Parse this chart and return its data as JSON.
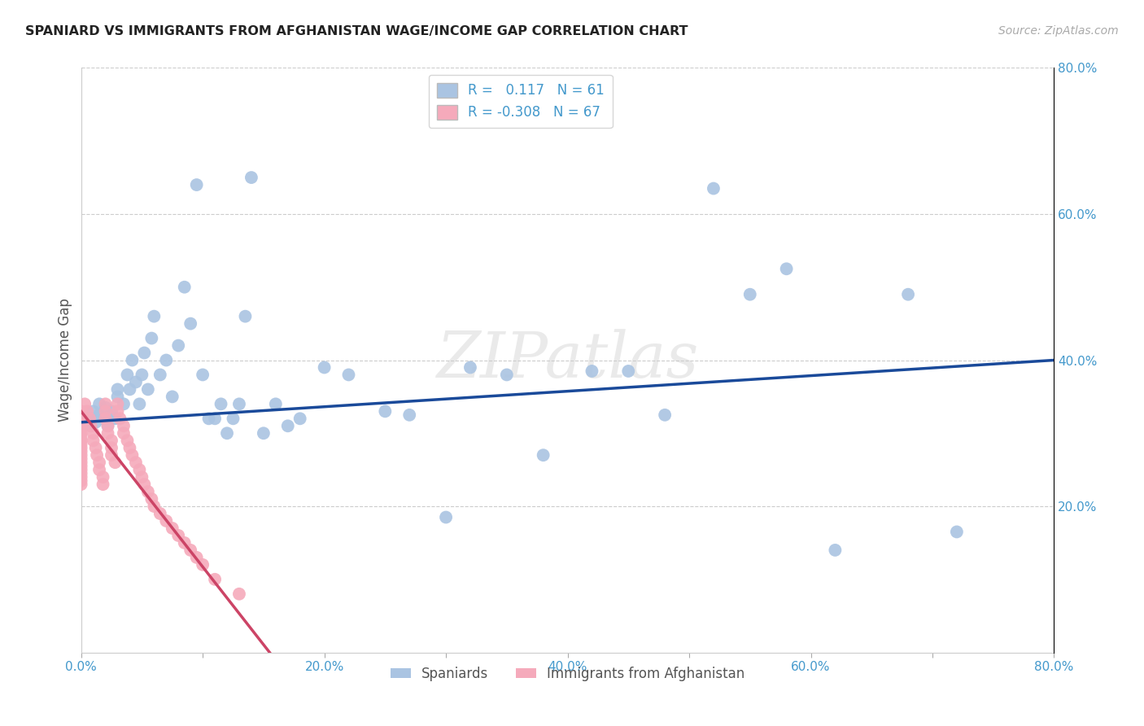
{
  "title": "SPANIARD VS IMMIGRANTS FROM AFGHANISTAN WAGE/INCOME GAP CORRELATION CHART",
  "source": "Source: ZipAtlas.com",
  "ylabel": "Wage/Income Gap",
  "xlabel": "",
  "xlim": [
    0.0,
    0.8
  ],
  "ylim": [
    0.0,
    0.8
  ],
  "xtick_labels": [
    "0.0%",
    "",
    "20.0%",
    "",
    "40.0%",
    "",
    "60.0%",
    "",
    "80.0%"
  ],
  "xtick_vals": [
    0.0,
    0.1,
    0.2,
    0.3,
    0.4,
    0.5,
    0.6,
    0.7,
    0.8
  ],
  "ytick_vals": [
    0.2,
    0.4,
    0.6,
    0.8
  ],
  "right_ytick_labels": [
    "20.0%",
    "40.0%",
    "60.0%",
    "80.0%"
  ],
  "watermark": "ZIPatlas",
  "spaniards_R": "0.117",
  "spaniards_N": "61",
  "afghanistan_R": "-0.308",
  "afghanistan_N": "67",
  "blue_color": "#aac4e2",
  "pink_color": "#f5aabb",
  "blue_line_color": "#1a4a9a",
  "pink_line_color": "#cc4466",
  "text_color": "#4499cc",
  "grid_color": "#cccccc",
  "blue_line_x0": 0.0,
  "blue_line_x1": 0.8,
  "blue_line_y0": 0.315,
  "blue_line_y1": 0.4,
  "pink_line_x0": 0.0,
  "pink_line_x1": 0.155,
  "pink_line_y0": 0.33,
  "pink_line_y1": 0.0,
  "spaniards_x": [
    0.005,
    0.008,
    0.01,
    0.012,
    0.015,
    0.015,
    0.018,
    0.02,
    0.022,
    0.025,
    0.028,
    0.03,
    0.03,
    0.035,
    0.038,
    0.04,
    0.042,
    0.045,
    0.048,
    0.05,
    0.052,
    0.055,
    0.058,
    0.06,
    0.065,
    0.07,
    0.075,
    0.08,
    0.085,
    0.09,
    0.095,
    0.1,
    0.105,
    0.11,
    0.115,
    0.12,
    0.125,
    0.13,
    0.135,
    0.14,
    0.15,
    0.16,
    0.17,
    0.18,
    0.2,
    0.22,
    0.25,
    0.27,
    0.3,
    0.32,
    0.35,
    0.38,
    0.42,
    0.45,
    0.48,
    0.52,
    0.55,
    0.58,
    0.62,
    0.68,
    0.72
  ],
  "spaniards_y": [
    0.32,
    0.31,
    0.33,
    0.315,
    0.325,
    0.34,
    0.32,
    0.335,
    0.31,
    0.33,
    0.32,
    0.35,
    0.36,
    0.34,
    0.38,
    0.36,
    0.4,
    0.37,
    0.34,
    0.38,
    0.41,
    0.36,
    0.43,
    0.46,
    0.38,
    0.4,
    0.35,
    0.42,
    0.5,
    0.45,
    0.64,
    0.38,
    0.32,
    0.32,
    0.34,
    0.3,
    0.32,
    0.34,
    0.46,
    0.65,
    0.3,
    0.34,
    0.31,
    0.32,
    0.39,
    0.38,
    0.33,
    0.325,
    0.185,
    0.39,
    0.38,
    0.27,
    0.385,
    0.385,
    0.325,
    0.635,
    0.49,
    0.525,
    0.14,
    0.49,
    0.165
  ],
  "afghanistan_x": [
    0.0,
    0.0,
    0.0,
    0.0,
    0.0,
    0.0,
    0.0,
    0.0,
    0.0,
    0.0,
    0.0,
    0.0,
    0.0,
    0.0,
    0.0,
    0.0,
    0.0,
    0.0,
    0.0,
    0.0,
    0.0,
    0.003,
    0.005,
    0.007,
    0.008,
    0.01,
    0.01,
    0.012,
    0.013,
    0.015,
    0.015,
    0.018,
    0.018,
    0.02,
    0.02,
    0.02,
    0.022,
    0.022,
    0.025,
    0.025,
    0.025,
    0.028,
    0.03,
    0.03,
    0.032,
    0.035,
    0.035,
    0.038,
    0.04,
    0.042,
    0.045,
    0.048,
    0.05,
    0.052,
    0.055,
    0.058,
    0.06,
    0.065,
    0.07,
    0.075,
    0.08,
    0.085,
    0.09,
    0.095,
    0.1,
    0.11,
    0.13
  ],
  "afghanistan_y": [
    0.33,
    0.325,
    0.32,
    0.315,
    0.31,
    0.305,
    0.3,
    0.295,
    0.29,
    0.285,
    0.28,
    0.275,
    0.27,
    0.265,
    0.26,
    0.255,
    0.25,
    0.245,
    0.24,
    0.235,
    0.23,
    0.34,
    0.33,
    0.32,
    0.31,
    0.3,
    0.29,
    0.28,
    0.27,
    0.26,
    0.25,
    0.24,
    0.23,
    0.34,
    0.33,
    0.32,
    0.31,
    0.3,
    0.29,
    0.28,
    0.27,
    0.26,
    0.34,
    0.33,
    0.32,
    0.31,
    0.3,
    0.29,
    0.28,
    0.27,
    0.26,
    0.25,
    0.24,
    0.23,
    0.22,
    0.21,
    0.2,
    0.19,
    0.18,
    0.17,
    0.16,
    0.15,
    0.14,
    0.13,
    0.12,
    0.1,
    0.08
  ]
}
